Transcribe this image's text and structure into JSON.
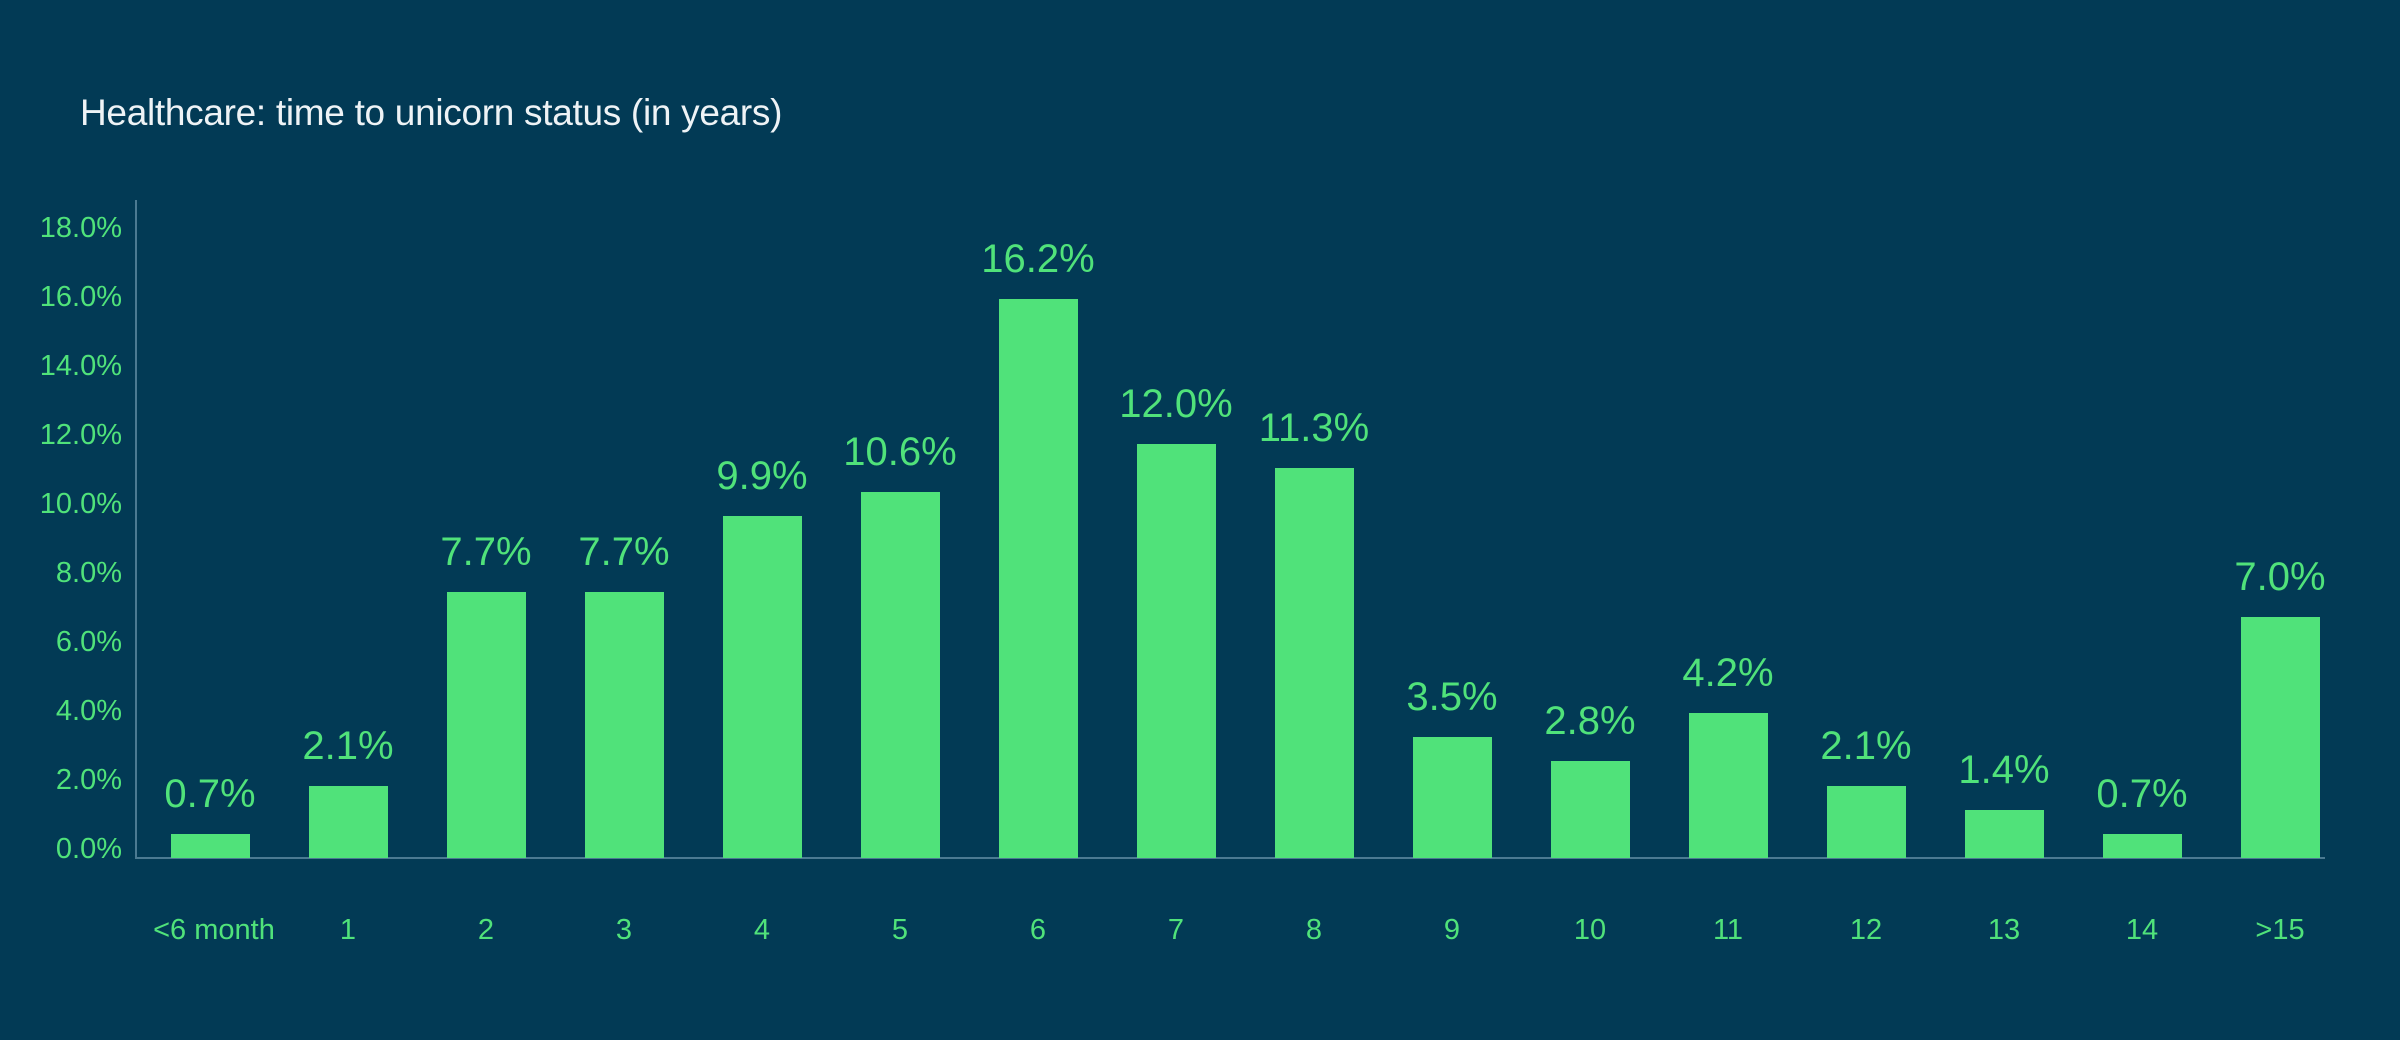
{
  "colors": {
    "background": "#023a55",
    "bar": "#50e27a",
    "axis": "#4b7a92",
    "title": "#eef3f6"
  },
  "chart_data": {
    "type": "bar",
    "title": "Healthcare: time to unicorn status (in years)",
    "xlabel": "",
    "ylabel": "",
    "ylim": [
      0,
      18
    ],
    "grid": false,
    "legend": null,
    "y_ticks": [
      "0.0%",
      "2.0%",
      "4.0%",
      "6.0%",
      "8.0%",
      "10.0%",
      "12.0%",
      "14.0%",
      "16.0%",
      "18.0%"
    ],
    "categories": [
      "<6 month",
      "1",
      "2",
      "3",
      "4",
      "5",
      "6",
      "7",
      "8",
      "9",
      "10",
      "11",
      "12",
      "13",
      "14",
      ">15"
    ],
    "values": [
      0.7,
      2.1,
      7.7,
      7.7,
      9.9,
      10.6,
      16.2,
      12.0,
      11.3,
      3.5,
      2.8,
      4.2,
      2.1,
      1.4,
      0.7,
      7.0
    ],
    "value_labels": [
      "0.7%",
      "2.1%",
      "7.7%",
      "7.7%",
      "9.9%",
      "10.6%",
      "16.2%",
      "12.0%",
      "11.3%",
      "3.5%",
      "2.8%",
      "4.2%",
      "2.1%",
      "1.4%",
      "0.7%",
      "7.0%"
    ]
  }
}
